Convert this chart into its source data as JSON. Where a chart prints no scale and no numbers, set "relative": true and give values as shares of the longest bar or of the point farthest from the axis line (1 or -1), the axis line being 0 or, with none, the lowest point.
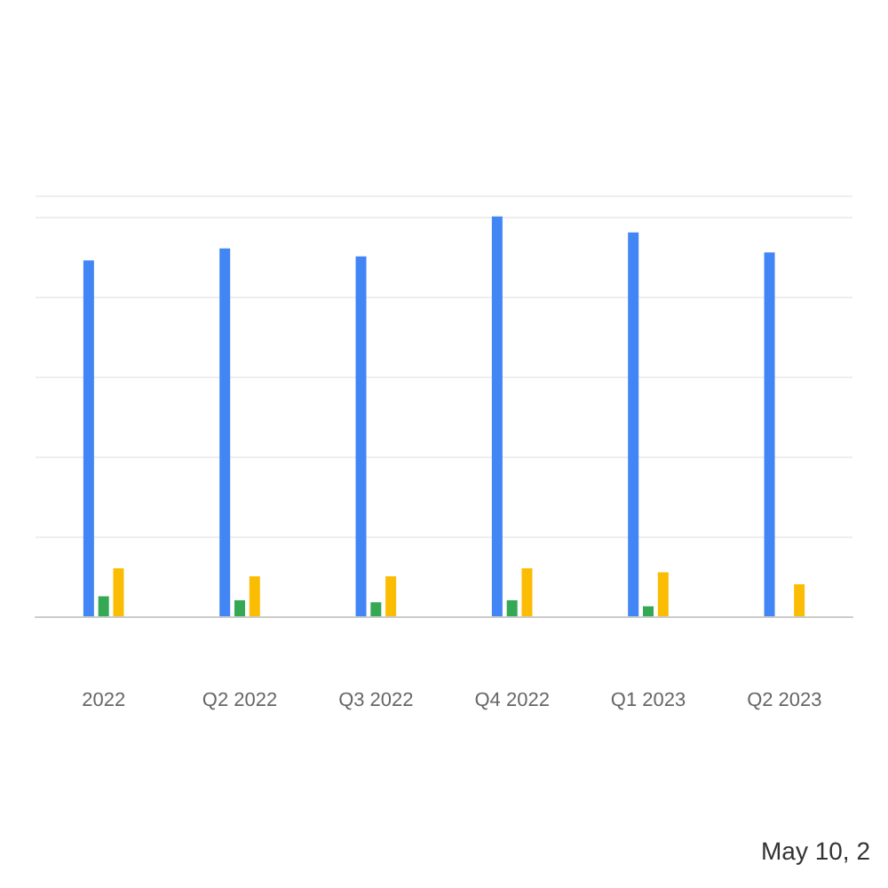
{
  "chart_data": {
    "type": "bar",
    "relative": true,
    "categories": [
      "2022",
      "Q2 2022",
      "Q3 2022",
      "Q4 2022",
      "Q1 2023",
      "Q2 2023"
    ],
    "series": [
      {
        "color": "#4285f4",
        "values": [
          0.89,
          0.92,
          0.9,
          1,
          0.96,
          0.91
        ]
      },
      {
        "color": "#34a853",
        "values": [
          0.05,
          0.04,
          0.035,
          0.04,
          0.025,
          null
        ]
      },
      {
        "color": "#fbbc04",
        "values": [
          0.12,
          0.1,
          0.1,
          0.12,
          0.11,
          0.08
        ]
      }
    ],
    "grid": "y",
    "annotations": [
      "May 10, 2"
    ]
  }
}
